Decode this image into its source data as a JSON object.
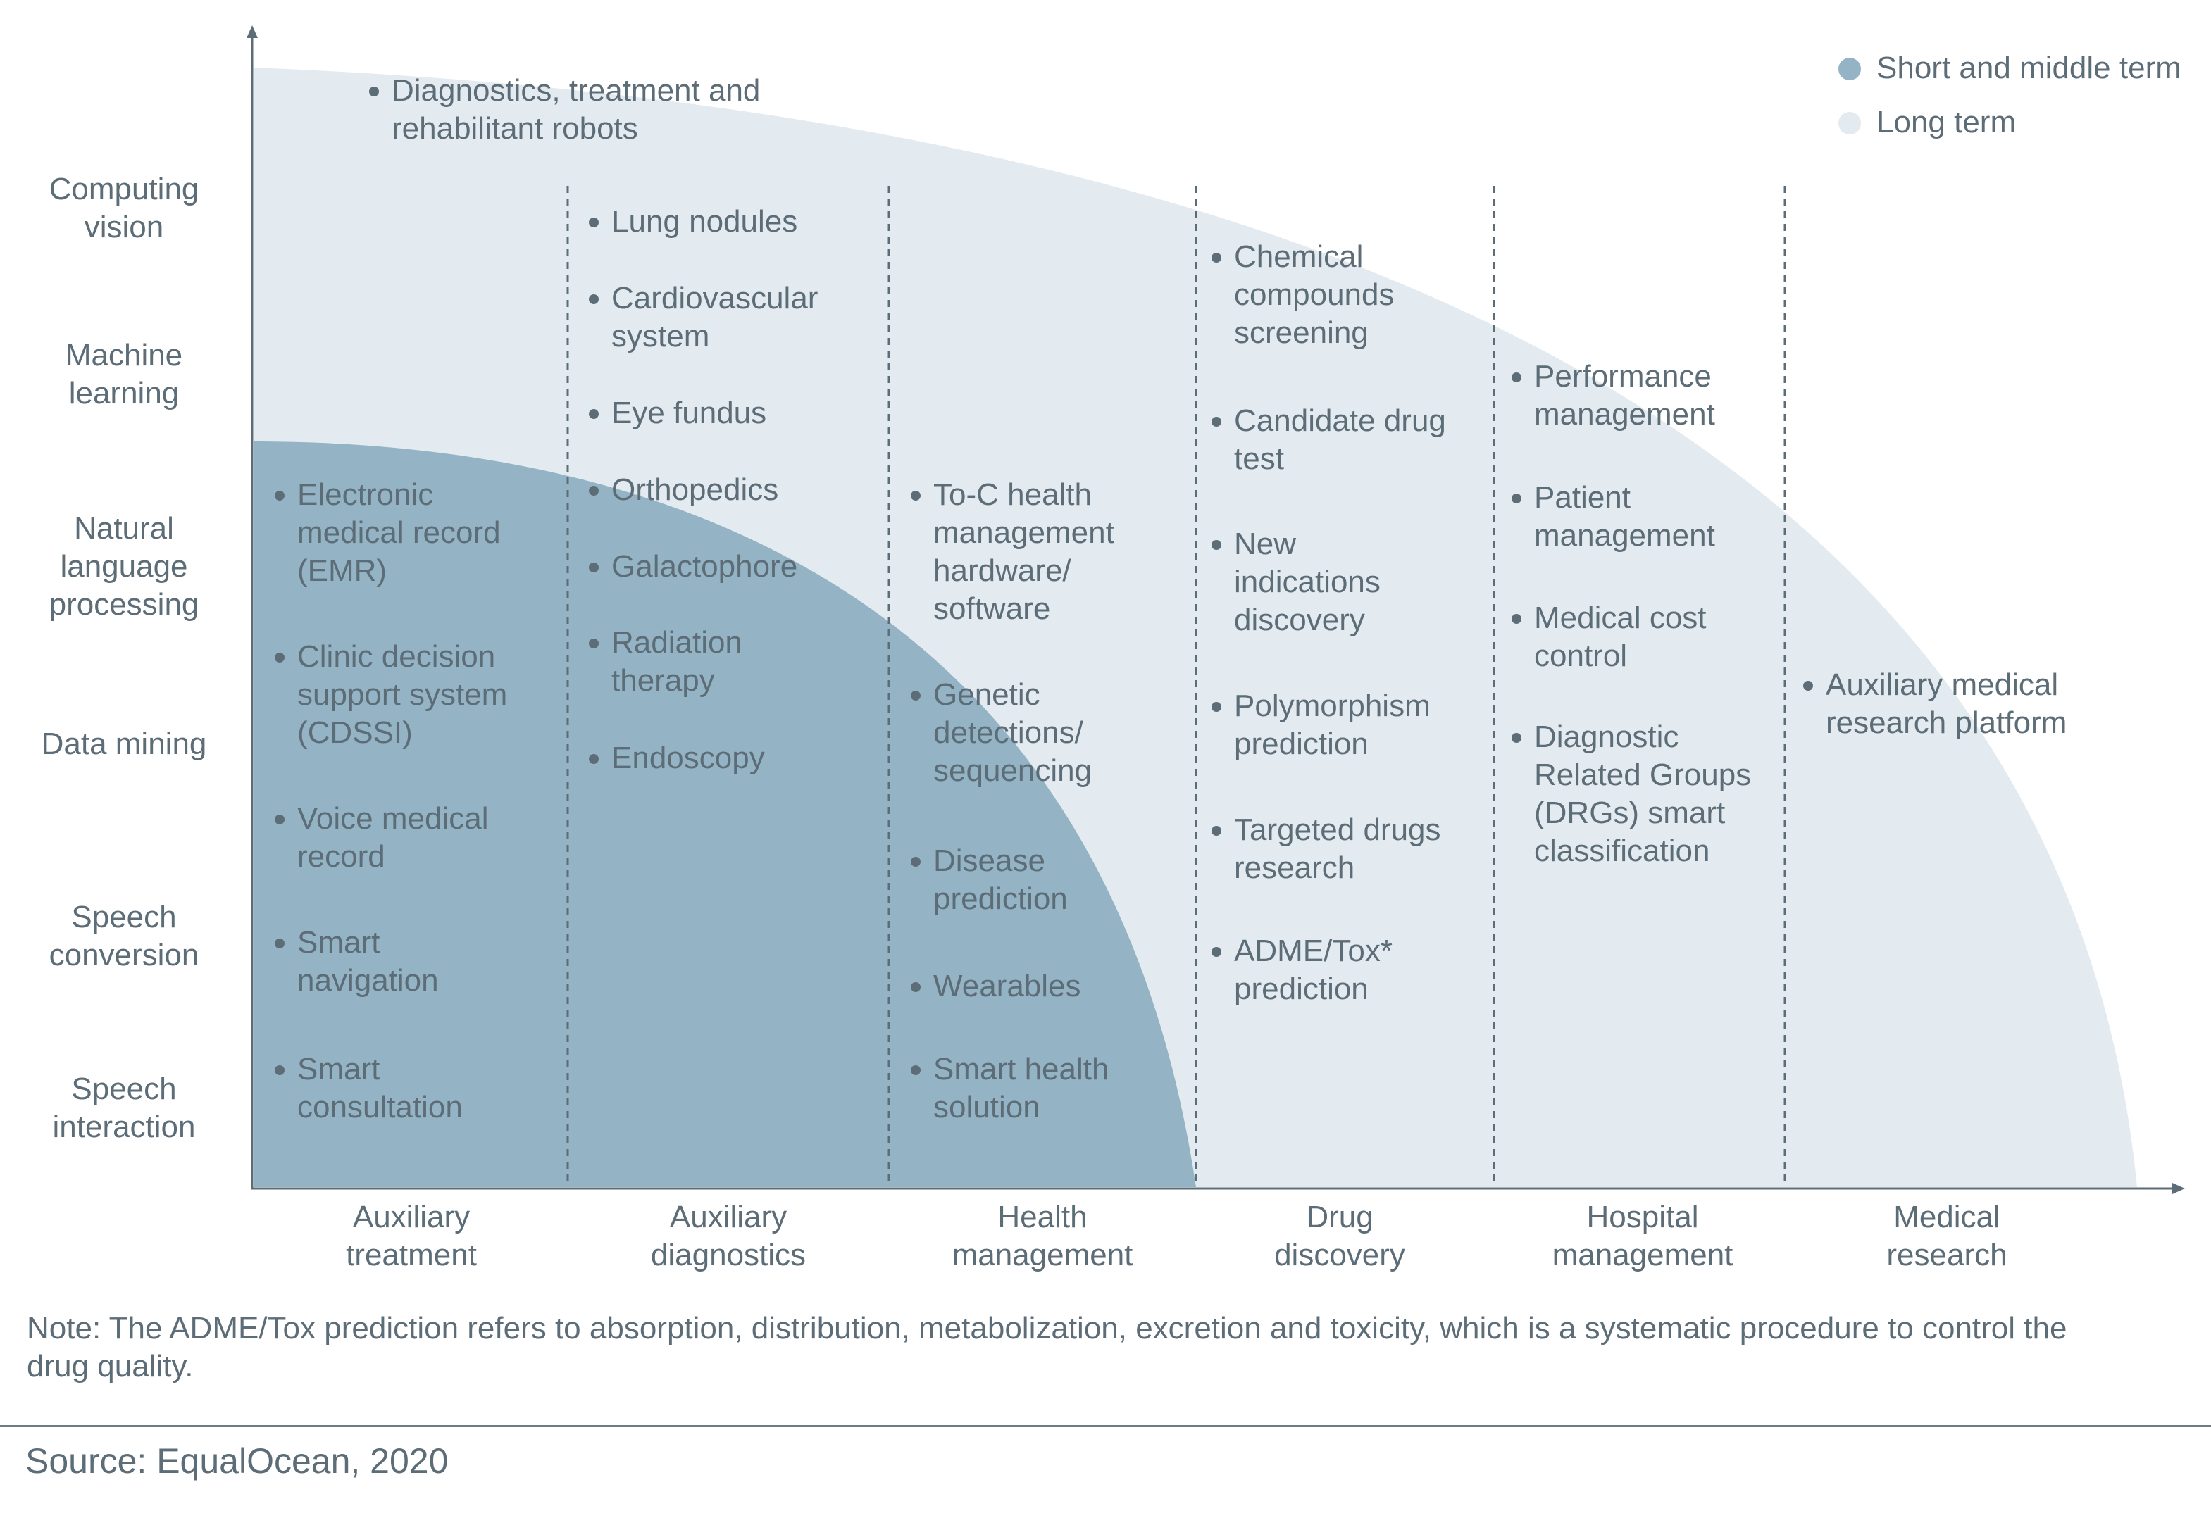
{
  "colors": {
    "short": "#94b4c5",
    "long": "#e3eaf0",
    "text": "#5d6d78",
    "axis": "#5d6d78"
  },
  "legend": [
    {
      "label": "Short and middle term",
      "color": "#94b4c5"
    },
    {
      "label": "Long term",
      "color": "#e3eaf0"
    }
  ],
  "y_labels": [
    "Computing\nvision",
    "Machine\nlearning",
    "Natural\nlanguage\nprocessing",
    "Data mining",
    "Speech\nconversion",
    "Speech\ninteraction"
  ],
  "x_labels": [
    "Auxiliary\ntreatment",
    "Auxiliary\ndiagnostics",
    "Health\nmanagement",
    "Drug\ndiscovery",
    "Hospital\nmanagement",
    "Medical\nresearch"
  ],
  "columns": [
    {
      "items": [
        "Diagnostics, treatment and\nrehabilitant robots",
        "Electronic\nmedical record\n(EMR)",
        "Clinic decision\nsupport system\n(CDSSI)",
        "Voice medical\nrecord",
        "Smart\nnavigation",
        "Smart\nconsultation"
      ]
    },
    {
      "items": [
        "Lung nodules",
        "Cardiovascular\nsystem",
        "Eye fundus",
        "Orthopedics",
        "Galactophore",
        "Radiation\ntherapy",
        "Endoscopy"
      ]
    },
    {
      "items": [
        "To-C health\nmanagement\nhardware/\nsoftware",
        "Genetic\ndetections/\nsequencing",
        "Disease\nprediction",
        "Wearables",
        "Smart health\nsolution"
      ]
    },
    {
      "items": [
        "Chemical\ncompounds\nscreening",
        "Candidate drug\ntest",
        "New\nindications\ndiscovery",
        "Polymorphism\nprediction",
        "Targeted drugs\nresearch",
        "ADME/Tox*\nprediction"
      ]
    },
    {
      "items": [
        "Performance\nmanagement",
        "Patient\nmanagement",
        "Medical cost\ncontrol",
        "Diagnostic\nRelated Groups\n(DRGs) smart\nclassification"
      ]
    },
    {
      "items": [
        "Auxiliary medical\nresearch platform"
      ]
    }
  ],
  "note": "Note: The ADME/Tox prediction refers to absorption, distribution, metabolization, excretion and toxicity, which is a systematic procedure to control the drug quality.",
  "source": "Source: EqualOcean, 2020"
}
